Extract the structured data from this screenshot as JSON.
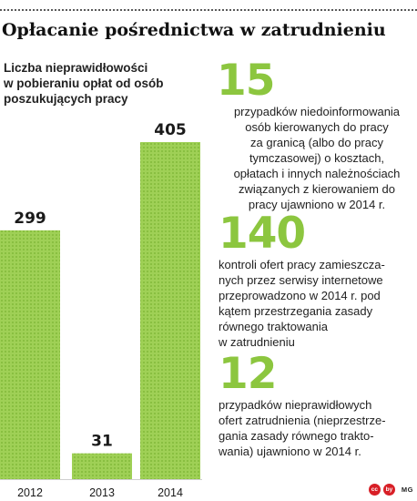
{
  "title": "Opłacanie pośrednictwa w zatrudnieniu",
  "chart_data": {
    "type": "bar",
    "title": "Liczba nieprawidłowości\nw pobieraniu opłat od osób\nposzukujących pracy",
    "categories": [
      "2012",
      "2013",
      "2014"
    ],
    "values": [
      299,
      31,
      405
    ],
    "ylim": [
      0,
      405
    ],
    "grid": false,
    "color": "#8cc63f"
  },
  "stats": [
    {
      "number": "15",
      "text": "przypadków niedoinformowania\nosób kierowanych do pracy\nza granicą (albo do pracy\ntymczasowej) o kosztach,\nopłatach i innych należnościach\nzwiązanych z kierowaniem do\npracy ujawniono w 2014 r."
    },
    {
      "number": "140",
      "text": "kontroli ofert pracy zamieszcza-\nnych przez serwisy internetowe\nprzeprowadzono w 2014 r. pod\nkątem przestrzegania zasady\nrównego traktowania\nw zatrudnieniu"
    },
    {
      "number": "12",
      "text": "przypadków nieprawidłowych\nofert zatrudnienia (nieprzestrze-\ngania zasady równego trakto-\nwania) ujawniono w 2014 r."
    }
  ],
  "footer": {
    "badges": [
      "cc",
      "by"
    ],
    "credit": "MG"
  },
  "colors": {
    "accent": "#8cc63f",
    "bar": "#8cc63f",
    "badge": "#d81f26"
  }
}
